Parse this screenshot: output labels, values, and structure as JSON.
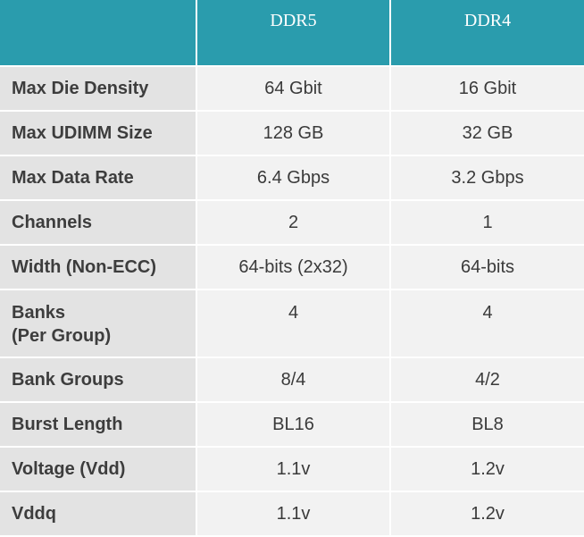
{
  "table": {
    "header": [
      "",
      "DDR5",
      "DDR4"
    ],
    "rows": [
      {
        "label": [
          "Max Die Density"
        ],
        "ddr5": "64 Gbit",
        "ddr4": "16 Gbit"
      },
      {
        "label": [
          "Max UDIMM Size"
        ],
        "ddr5": "128 GB",
        "ddr4": "32 GB"
      },
      {
        "label": [
          "Max Data Rate"
        ],
        "ddr5": "6.4 Gbps",
        "ddr4": "3.2 Gbps"
      },
      {
        "label": [
          "Channels"
        ],
        "ddr5": "2",
        "ddr4": "1"
      },
      {
        "label": [
          "Width (Non-ECC)"
        ],
        "ddr5": "64-bits (2x32)",
        "ddr4": "64-bits"
      },
      {
        "label": [
          "Banks",
          "(Per Group)"
        ],
        "ddr5": "4",
        "ddr4": "4"
      },
      {
        "label": [
          "Bank Groups"
        ],
        "ddr5": "8/4",
        "ddr4": "4/2"
      },
      {
        "label": [
          "Burst Length"
        ],
        "ddr5": "BL16",
        "ddr4": "BL8"
      },
      {
        "label": [
          "Voltage (Vdd)"
        ],
        "ddr5": "1.1v",
        "ddr4": "1.2v"
      },
      {
        "label": [
          "Vddq"
        ],
        "ddr5": "1.1v",
        "ddr4": "1.2v"
      }
    ]
  },
  "colors": {
    "header_bg": "#2a9cad",
    "label_bg": "#e3e3e3",
    "value_bg": "#f2f2f2",
    "grid": "#ffffff"
  }
}
